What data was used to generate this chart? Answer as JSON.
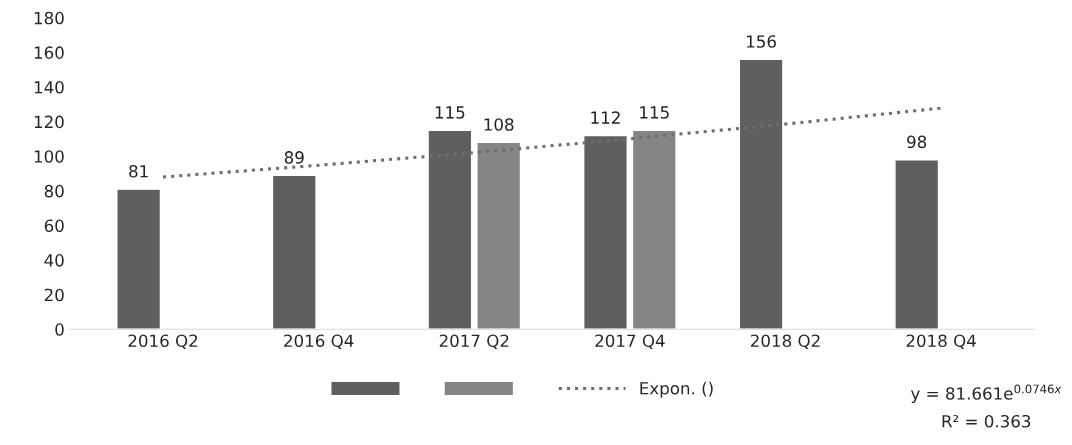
{
  "chart_data": {
    "type": "bar",
    "categories": [
      "2016 Q2",
      "2016 Q4",
      "2017 Q2",
      "2017 Q4",
      "2018 Q2",
      "2018 Q4"
    ],
    "series": [
      {
        "color": "#5f5f5f",
        "values": [
          81,
          89,
          115,
          112,
          156,
          98
        ],
        "value_labels": [
          "81",
          "89",
          "115",
          "112",
          "156",
          "98"
        ]
      },
      {
        "color": "#858585",
        "values": [
          null,
          null,
          108,
          115,
          null,
          null
        ],
        "value_labels": [
          null,
          null,
          "108",
          "115",
          null,
          null
        ]
      },
      {
        "type": "line",
        "name": "Expon. ()",
        "color": "#6e6e6e",
        "line_style": "dotted",
        "marker": "none",
        "values": [
          88.0,
          94.8,
          102.1,
          110.1,
          118.6,
          127.8
        ]
      }
    ],
    "ylim": [
      0,
      180
    ],
    "yticks": [
      0,
      20,
      40,
      60,
      80,
      100,
      120,
      140,
      160,
      180
    ],
    "grid": false,
    "legend": "bottom",
    "annotations": [
      {
        "text": "y = 81.661e$^{0.0746x}$"
      },
      {
        "text": "R² = 0.363"
      }
    ]
  }
}
